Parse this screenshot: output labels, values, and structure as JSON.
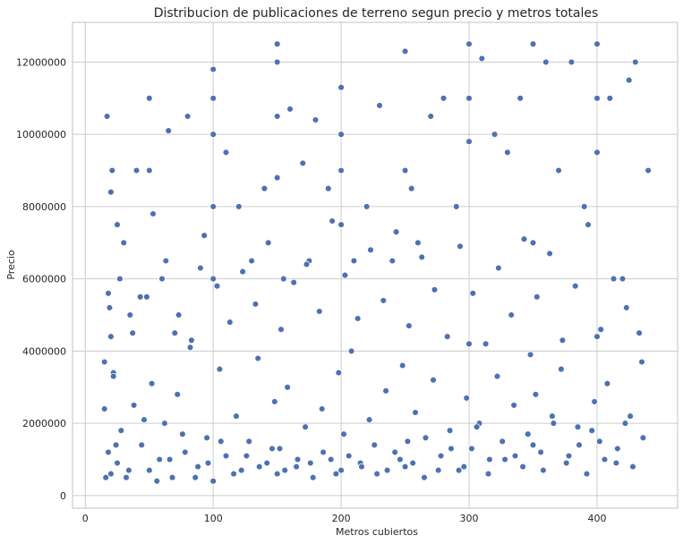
{
  "chart_data": {
    "type": "scatter",
    "title": "Distribucion de publicaciones de terreno segun precio y metros totales",
    "xlabel": "Metros cubiertos",
    "ylabel": "Precio",
    "xlim": [
      -10,
      463
    ],
    "ylim": [
      -350000,
      13100000
    ],
    "x_ticks": [
      0,
      100,
      200,
      300,
      400
    ],
    "y_ticks": [
      0,
      2000000,
      4000000,
      6000000,
      8000000,
      10000000,
      12000000
    ],
    "x_tick_labels": [
      "0",
      "100",
      "200",
      "300",
      "400"
    ],
    "y_tick_labels": [
      "0",
      "2000000",
      "4000000",
      "6000000",
      "8000000",
      "10000000",
      "12000000"
    ],
    "grid": true,
    "series": [
      {
        "color": "#4c72b0",
        "x": [
          15,
          17,
          18,
          20,
          20,
          21,
          22,
          25,
          30,
          35,
          40,
          48,
          50,
          50,
          60,
          65,
          70,
          80,
          90,
          100,
          100,
          100,
          100,
          100,
          110,
          120,
          130,
          140,
          150,
          150,
          150,
          150,
          155,
          160,
          170,
          175,
          180,
          190,
          200,
          200,
          200,
          200,
          210,
          220,
          230,
          240,
          250,
          250,
          255,
          260,
          270,
          280,
          290,
          300,
          300,
          300,
          310,
          320,
          330,
          340,
          350,
          350,
          360,
          370,
          380,
          390,
          400,
          400,
          400,
          410,
          420,
          425,
          430,
          440,
          15,
          18,
          20,
          22,
          25,
          28,
          32,
          38,
          44,
          50,
          52,
          58,
          62,
          68,
          72,
          78,
          82,
          88,
          95,
          100,
          105,
          110,
          118,
          122,
          128,
          135,
          142,
          148,
          150,
          152,
          158,
          165,
          172,
          178,
          185,
          192,
          198,
          200,
          202,
          208,
          215,
          222,
          228,
          235,
          242,
          248,
          250,
          252,
          258,
          265,
          272,
          278,
          285,
          292,
          298,
          300,
          302,
          308,
          315,
          322,
          328,
          335,
          342,
          348,
          350,
          352,
          358,
          365,
          372,
          378,
          385,
          392,
          398,
          400,
          402,
          408,
          415,
          422,
          428,
          435,
          16,
          24,
          34,
          46,
          56,
          66,
          76,
          86,
          96,
          106,
          116,
          126,
          136,
          146,
          156,
          166,
          176,
          186,
          196,
          206,
          216,
          226,
          236,
          246,
          256,
          266,
          276,
          286,
          296,
          306,
          316,
          326,
          336,
          346,
          356,
          366,
          376,
          386,
          396,
          406,
          416,
          426,
          436,
          19,
          27,
          37,
          43,
          53,
          63,
          73,
          83,
          93,
          103,
          113,
          123,
          133,
          143,
          153,
          163,
          173,
          183,
          193,
          203,
          213,
          223,
          233,
          243,
          253,
          263,
          273,
          283,
          293,
          303,
          313,
          323,
          333,
          343,
          353,
          363,
          373,
          383,
          393,
          403,
          413,
          423,
          433
        ],
        "y": [
          3700000,
          10500000,
          5600000,
          8400000,
          4400000,
          9000000,
          3400000,
          7500000,
          7000000,
          5000000,
          9000000,
          5500000,
          11000000,
          9000000,
          6000000,
          10100000,
          4500000,
          10500000,
          6300000,
          11800000,
          11000000,
          10000000,
          8000000,
          6000000,
          9500000,
          8000000,
          6500000,
          8500000,
          12500000,
          12000000,
          10500000,
          8800000,
          6000000,
          10700000,
          9200000,
          6500000,
          10400000,
          8500000,
          11300000,
          10000000,
          9000000,
          7500000,
          6500000,
          8000000,
          10800000,
          6500000,
          12300000,
          9000000,
          8500000,
          7000000,
          10500000,
          11000000,
          8000000,
          12500000,
          11000000,
          9800000,
          12100000,
          10000000,
          9500000,
          11000000,
          12500000,
          7000000,
          12000000,
          9000000,
          12000000,
          8000000,
          12500000,
          11000000,
          9500000,
          11000000,
          6000000,
          11500000,
          12000000,
          9000000,
          2400000,
          1200000,
          600000,
          3300000,
          900000,
          1800000,
          500000,
          2500000,
          1400000,
          700000,
          3100000,
          1000000,
          2000000,
          500000,
          2800000,
          1200000,
          4100000,
          800000,
          1600000,
          400000,
          3500000,
          1100000,
          2200000,
          700000,
          1500000,
          3800000,
          900000,
          2600000,
          600000,
          1300000,
          3000000,
          800000,
          1900000,
          500000,
          2400000,
          1000000,
          3400000,
          700000,
          1700000,
          4000000,
          900000,
          2100000,
          600000,
          2900000,
          1200000,
          3600000,
          800000,
          1500000,
          2300000,
          500000,
          3200000,
          1100000,
          1800000,
          700000,
          2700000,
          4200000,
          1300000,
          2000000,
          600000,
          3300000,
          1000000,
          2500000,
          800000,
          3900000,
          1400000,
          2800000,
          700000,
          2200000,
          3500000,
          1100000,
          1900000,
          600000,
          2600000,
          4400000,
          1500000,
          3100000,
          900000,
          2000000,
          800000,
          3700000,
          500000,
          1400000,
          700000,
          2100000,
          400000,
          1000000,
          1700000,
          500000,
          900000,
          1500000,
          600000,
          1100000,
          800000,
          1300000,
          700000,
          1000000,
          900000,
          1200000,
          600000,
          1100000,
          800000,
          1400000,
          700000,
          1000000,
          900000,
          1600000,
          700000,
          1300000,
          800000,
          1900000,
          1000000,
          1500000,
          1100000,
          1700000,
          1200000,
          2000000,
          900000,
          1400000,
          1800000,
          1000000,
          1300000,
          2200000,
          1600000,
          5200000,
          6000000,
          4500000,
          5500000,
          7800000,
          6500000,
          5000000,
          4300000,
          7200000,
          5800000,
          4800000,
          6200000,
          5300000,
          7000000,
          4600000,
          5900000,
          6400000,
          5100000,
          7600000,
          6100000,
          4900000,
          6800000,
          5400000,
          7300000,
          4700000,
          6600000,
          5700000,
          4400000,
          6900000,
          5600000,
          4200000,
          6300000,
          5000000,
          7100000,
          5500000,
          6700000,
          4300000,
          5800000,
          7500000,
          4600000,
          6000000,
          5200000,
          4500000
        ]
      }
    ]
  }
}
